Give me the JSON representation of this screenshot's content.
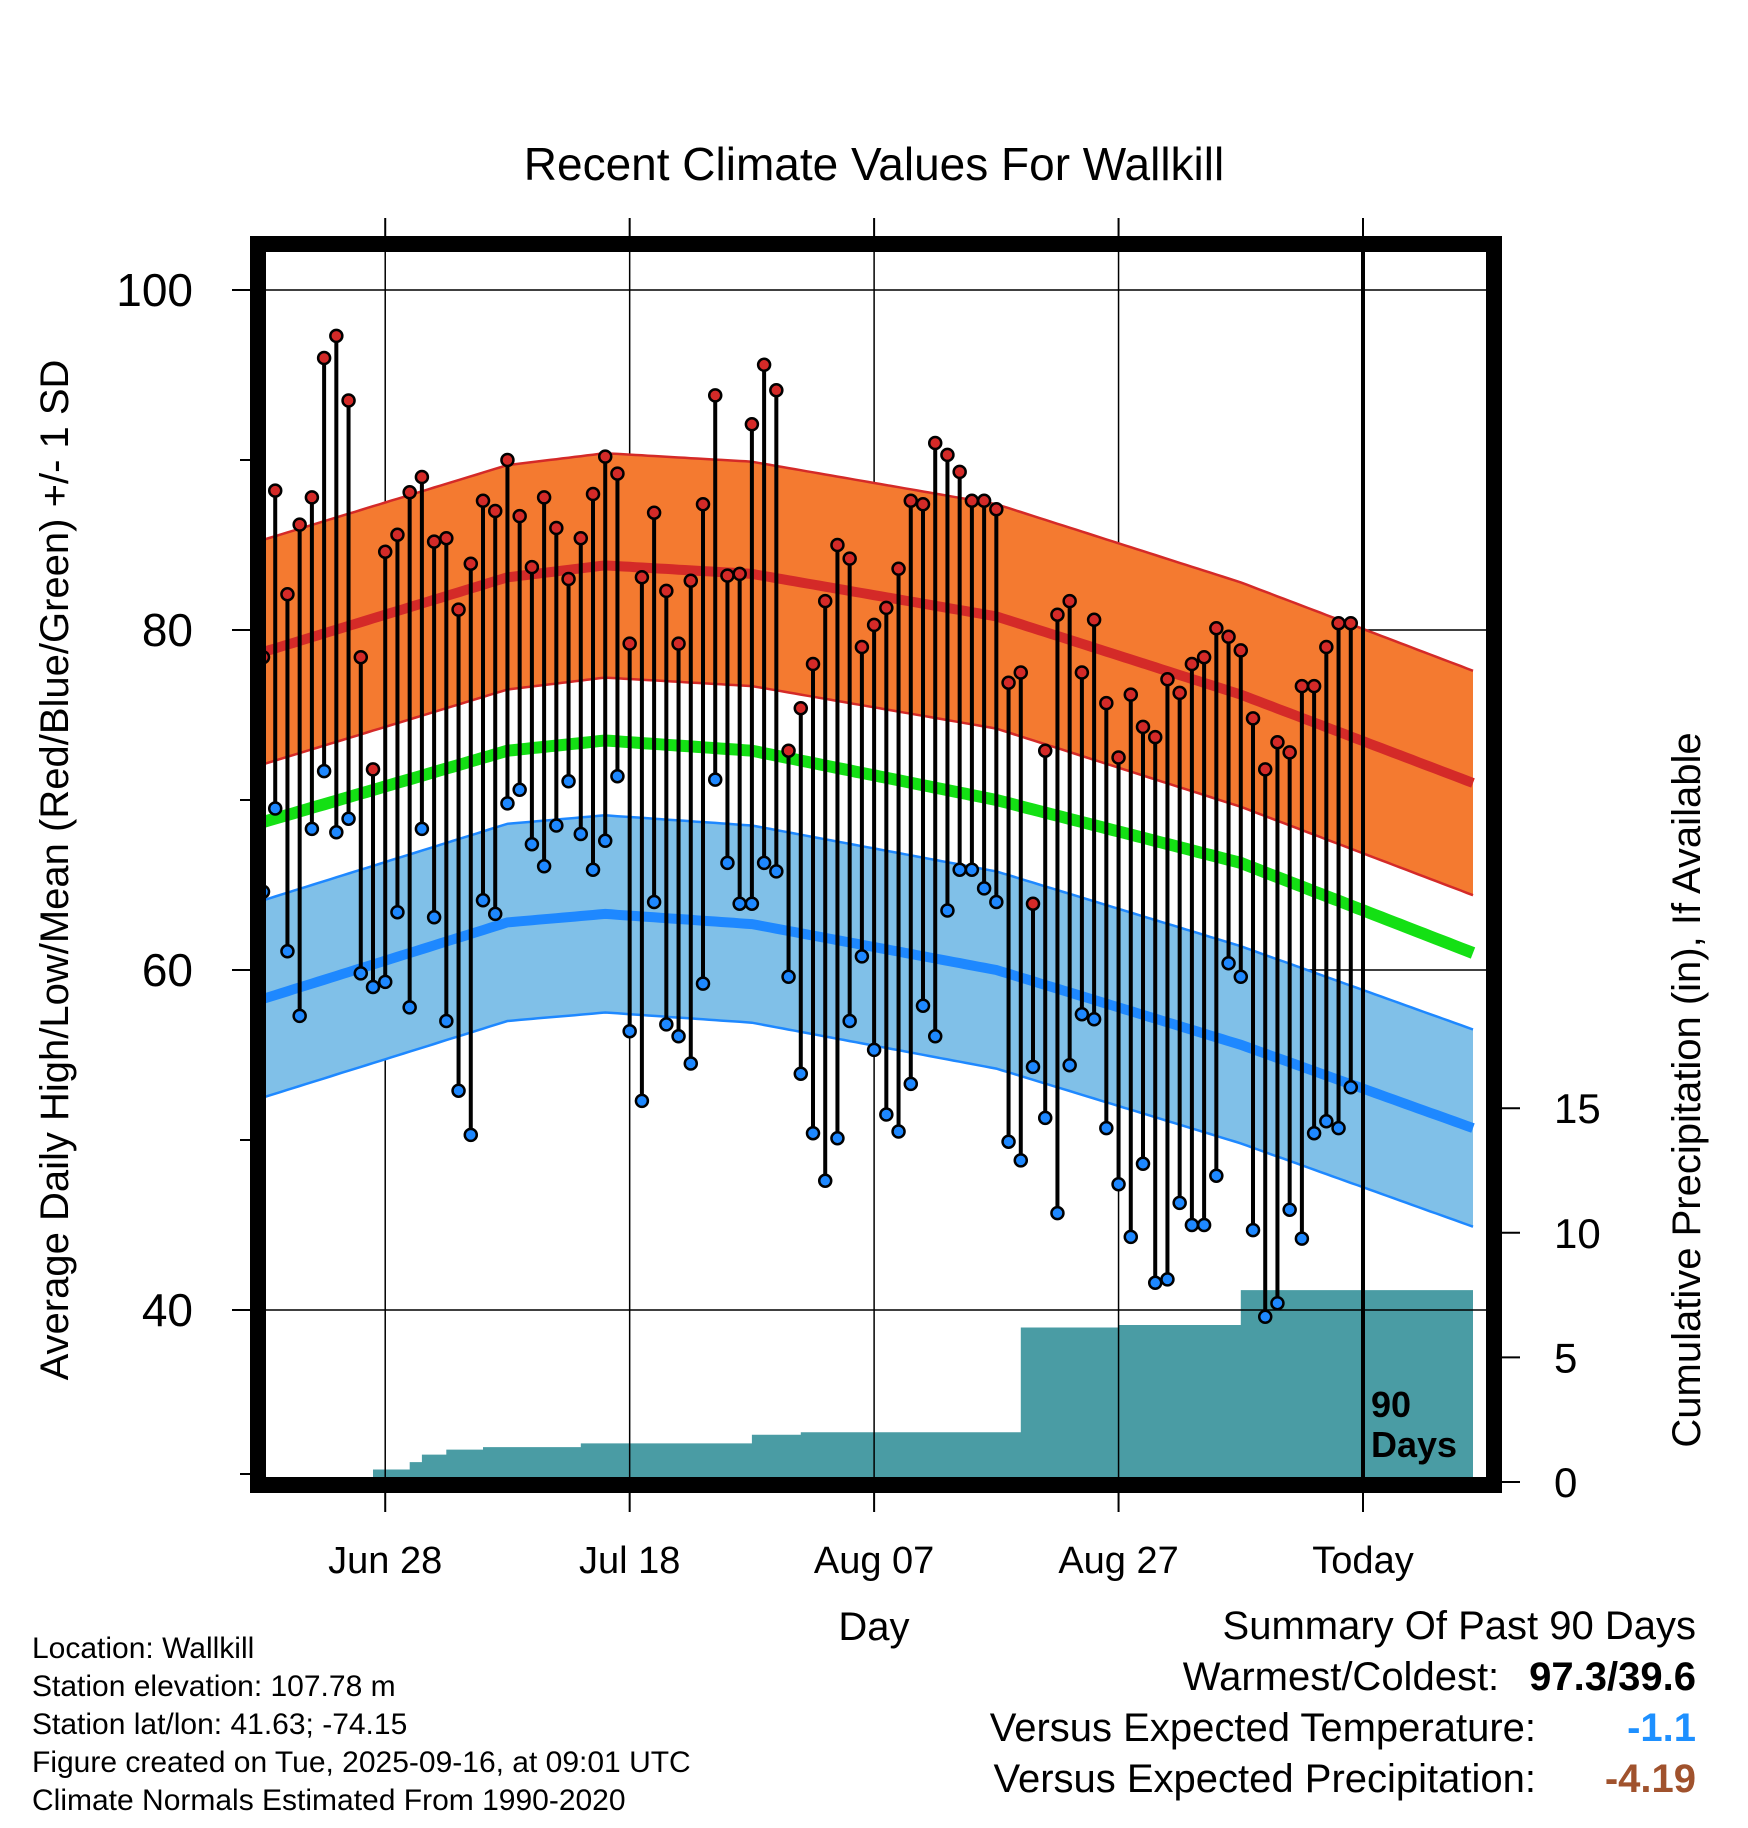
{
  "title": "Recent Climate Values For Wallkill",
  "ylabel_left": "Average Daily High/Low/Mean (Red/Blue/Green) +/- 1 SD",
  "ylabel_right": "Cumulative Precipitation (in), If Available",
  "xlabel": "Day",
  "marker_label_line1": "90",
  "marker_label_line2": "Days",
  "info": {
    "location": "Location: Wallkill",
    "elevation": "Station elevation: 107.78 m",
    "latlon": "Station lat/lon: 41.63; -74.15",
    "created": "Figure created on Tue, 2025-09-16, at 09:01 UTC",
    "normals": "Climate Normals Estimated From 1990-2020"
  },
  "summary": {
    "heading": "Summary Of Past 90 Days",
    "warm_cold_label": "Warmest/Coldest:",
    "warm_cold_value": "97.3/39.6",
    "temp_label": "Versus Expected Temperature:",
    "temp_value": "-1.1",
    "temp_color": "#1e90ff",
    "precip_label": "Versus Expected Precipitation:",
    "precip_value": "-4.19",
    "precip_color": "#a0522d"
  },
  "chart_data": {
    "type": "line",
    "title": "Recent Climate Values For Wallkill",
    "xlabel": "Day",
    "ylabel": "Average Daily High/Low/Mean (Red/Blue/Green) +/- 1 SD",
    "y2label": "Cumulative Precipitation (in), If Available",
    "x_start": "Jun 18",
    "x_range_days": [
      -90,
      9
    ],
    "today_index": 90,
    "ylim": [
      30,
      104
    ],
    "yticks": [
      40,
      60,
      80,
      100
    ],
    "yticks_minor": [
      50,
      70,
      90
    ],
    "y2lim": [
      0,
      18.8
    ],
    "y2ticks": [
      0,
      5,
      10,
      15
    ],
    "xticks": [
      {
        "day": 10,
        "label": "Jun 28"
      },
      {
        "day": 30,
        "label": "Jul 18"
      },
      {
        "day": 50,
        "label": "Aug 07"
      },
      {
        "day": 70,
        "label": "Aug 27"
      },
      {
        "day": 90,
        "label": "Today"
      }
    ],
    "grid": true,
    "colors": {
      "high_band": "#f47a30",
      "high_line": "#d42a28",
      "low_band": "#80c0e8",
      "low_line": "#1e88ff",
      "mean_line": "#14e014",
      "precip": "#4a9ca4",
      "high_marker": "#d42a28",
      "low_marker": "#1e88ff"
    },
    "normals_days": [
      0,
      20,
      28,
      40,
      60,
      80,
      99
    ],
    "normal_high": [
      78.7,
      83.1,
      83.8,
      83.3,
      80.8,
      76.2,
      71.0
    ],
    "normal_high_sd": 6.6,
    "normal_mean": [
      68.7,
      72.9,
      73.5,
      72.9,
      70.0,
      66.3,
      61.0
    ],
    "normal_low": [
      58.3,
      62.8,
      63.3,
      62.7,
      60.0,
      55.6,
      50.7
    ],
    "normal_low_sd": 5.8,
    "daily_high": [
      78.4,
      88.2,
      82.1,
      86.2,
      87.8,
      96.0,
      97.3,
      93.5,
      78.4,
      71.8,
      84.6,
      85.6,
      88.1,
      89.0,
      85.2,
      85.4,
      81.2,
      83.9,
      87.6,
      87.0,
      90.0,
      86.7,
      83.7,
      87.8,
      86.0,
      83.0,
      85.4,
      88.0,
      90.2,
      89.2,
      79.2,
      83.1,
      86.9,
      82.3,
      79.2,
      82.9,
      87.4,
      93.8,
      83.2,
      83.3,
      92.1,
      95.6,
      94.1,
      72.9,
      75.4,
      78.0,
      81.7,
      85.0,
      84.2,
      79.0,
      80.3,
      81.3,
      83.6,
      87.6,
      87.4,
      91.0,
      90.3,
      89.3,
      87.6,
      87.6,
      87.1,
      76.9,
      77.5,
      63.9,
      72.9,
      80.9,
      81.7,
      77.5,
      80.6,
      75.7,
      72.5,
      76.2,
      74.3,
      73.7,
      77.1,
      76.3,
      78.0,
      78.4,
      80.1,
      79.6,
      78.8,
      74.8,
      71.8,
      73.4,
      72.8,
      76.7,
      76.7,
      79.0,
      80.4,
      80.4
    ],
    "daily_low": [
      64.6,
      69.5,
      61.1,
      57.3,
      68.3,
      71.7,
      68.1,
      68.9,
      59.8,
      59.0,
      59.3,
      63.4,
      57.8,
      68.3,
      63.1,
      57.0,
      52.9,
      50.3,
      64.1,
      63.3,
      69.8,
      70.6,
      67.4,
      66.1,
      68.5,
      71.1,
      68.0,
      65.9,
      67.6,
      71.4,
      56.4,
      52.3,
      64.0,
      56.8,
      56.1,
      54.5,
      59.2,
      71.2,
      66.3,
      63.9,
      63.9,
      66.3,
      65.8,
      59.6,
      53.9,
      50.4,
      47.6,
      50.1,
      57.0,
      60.8,
      55.3,
      51.5,
      50.5,
      53.3,
      57.9,
      56.1,
      63.5,
      65.9,
      65.9,
      64.8,
      64.0,
      49.9,
      48.8,
      54.3,
      51.3,
      45.7,
      54.4,
      57.4,
      57.1,
      50.7,
      47.4,
      44.3,
      48.6,
      41.6,
      41.8,
      46.3,
      45.0,
      45.0,
      47.9,
      60.4,
      59.6,
      44.7,
      39.6,
      40.4,
      45.9,
      44.2,
      50.4,
      51.1,
      50.7,
      53.1
    ],
    "cumulative_precip": [
      0.05,
      0.05,
      0.05,
      0.1,
      0.1,
      0.1,
      0.2,
      0.2,
      0.2,
      0.5,
      0.5,
      0.5,
      0.8,
      1.1,
      1.1,
      1.3,
      1.3,
      1.3,
      1.4,
      1.4,
      1.4,
      1.4,
      1.4,
      1.4,
      1.4,
      1.4,
      1.55,
      1.55,
      1.55,
      1.55,
      1.55,
      1.55,
      1.55,
      1.55,
      1.55,
      1.55,
      1.55,
      1.55,
      1.55,
      1.55,
      1.9,
      1.9,
      1.9,
      1.9,
      2.0,
      2.0,
      2.0,
      2.0,
      2.0,
      2.0,
      2.0,
      2.0,
      2.0,
      2.0,
      2.0,
      2.0,
      2.0,
      2.0,
      2.0,
      2.0,
      2.0,
      2.0,
      6.2,
      6.2,
      6.2,
      6.2,
      6.2,
      6.2,
      6.2,
      6.2,
      6.3,
      6.3,
      6.3,
      6.3,
      6.3,
      6.3,
      6.3,
      6.3,
      6.3,
      6.3,
      7.7,
      7.7,
      7.7,
      7.7,
      7.7,
      7.7,
      7.7,
      7.7,
      7.7,
      7.7
    ]
  }
}
